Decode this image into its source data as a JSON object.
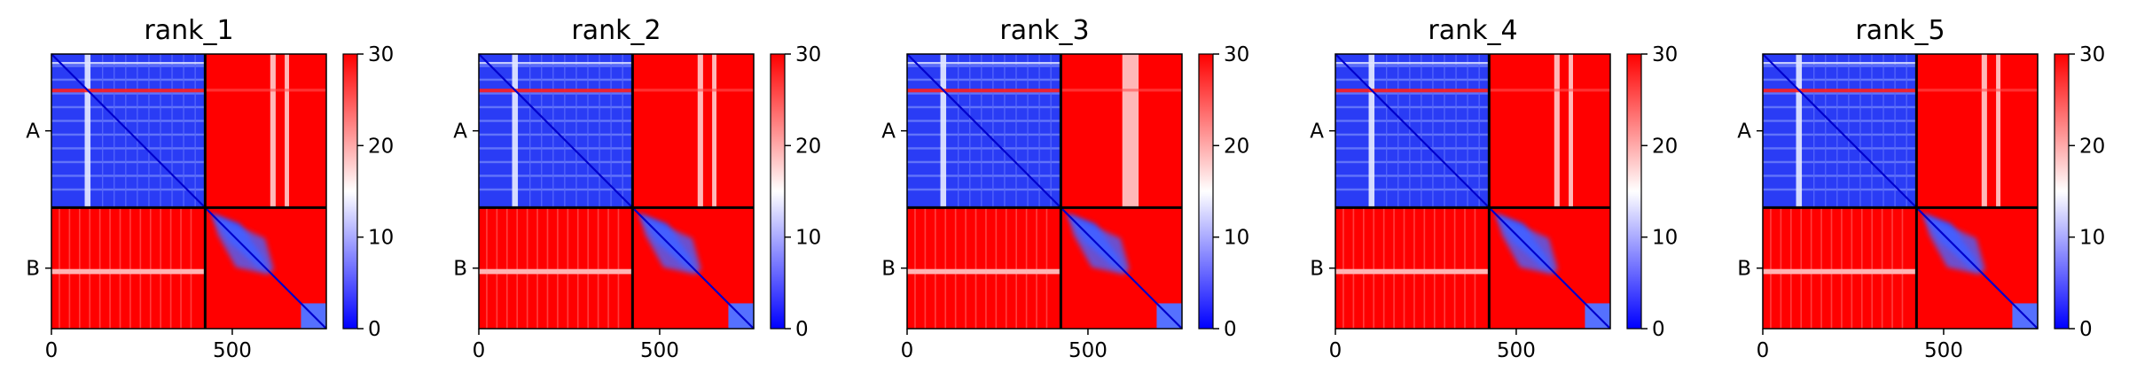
{
  "chart_data": {
    "type": "heatmap",
    "colormap": {
      "name": "bwr",
      "range": [
        0,
        30
      ],
      "stops": [
        "#0000ff",
        "#ffffff",
        "#ff0000"
      ],
      "colorbar_ticks": [
        "0",
        "10",
        "20",
        "30"
      ],
      "colorbar_tick_values": [
        0,
        10,
        20,
        30
      ]
    },
    "x_ticks": [
      "0",
      "500"
    ],
    "x_tick_values": [
      0,
      500
    ],
    "xlim": [
      0,
      760
    ],
    "chain_boundary": 425,
    "chains": [
      {
        "label": "A",
        "start": 0,
        "end": 425
      },
      {
        "label": "B",
        "start": 425,
        "end": 760
      }
    ],
    "panels": [
      {
        "title": "rank_1"
      },
      {
        "title": "rank_2"
      },
      {
        "title": "rank_3"
      },
      {
        "title": "rank_4"
      },
      {
        "title": "rank_5"
      }
    ],
    "grid": false
  }
}
